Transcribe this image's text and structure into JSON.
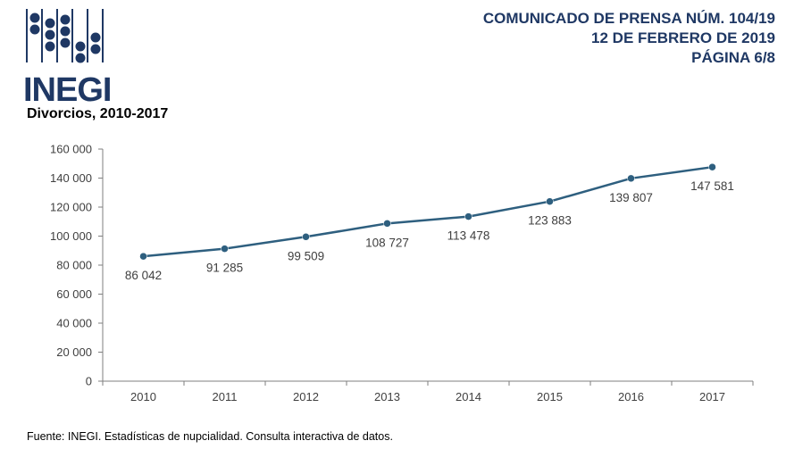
{
  "logo": {
    "text": "INEGI"
  },
  "header": {
    "line1": "COMUNICADO DE PRENSA NÚM. 104/19",
    "line2": "12 DE FEBRERO DE 2019",
    "line3": "PÁGINA 6/8"
  },
  "source": "Fuente: INEGI. Estadísticas de nupcialidad. Consulta interactiva de datos.",
  "colors": {
    "brand": "#1f3864",
    "line": "#2e5f7f",
    "marker": "#2e5f7f"
  },
  "chart_data": {
    "type": "line",
    "title": "Divorcios, 2010-2017",
    "xlabel": "",
    "ylabel": "",
    "categories": [
      "2010",
      "2011",
      "2012",
      "2013",
      "2014",
      "2015",
      "2016",
      "2017"
    ],
    "values": [
      86042,
      91285,
      99509,
      108727,
      113478,
      123883,
      139807,
      147581
    ],
    "value_labels": [
      "86 042",
      "91 285",
      "99 509",
      "108 727",
      "113 478",
      "123 883",
      "139 807",
      "147 581"
    ],
    "ylim": [
      0,
      160000
    ],
    "yticks": [
      0,
      20000,
      40000,
      60000,
      80000,
      100000,
      120000,
      140000,
      160000
    ],
    "ytick_labels": [
      "0",
      "20 000",
      "40 000",
      "60 000",
      "80 000",
      "100 000",
      "120 000",
      "140 000",
      "160 000"
    ],
    "grid": false,
    "legend": "none"
  }
}
